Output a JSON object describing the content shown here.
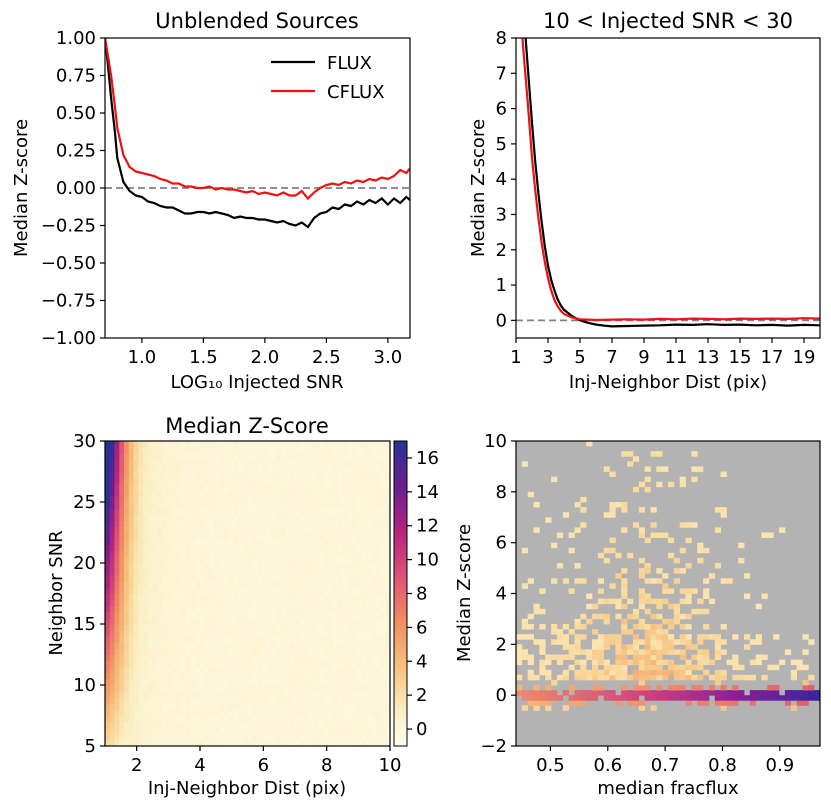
{
  "chart_data": [
    {
      "id": "p1",
      "type": "line",
      "title": "Unblended Sources",
      "xlabel": "LOG₁₀ Injected SNR",
      "ylabel": "Median Z-score",
      "xlim": [
        0.7,
        3.18
      ],
      "ylim": [
        -1.0,
        1.0
      ],
      "xticks": [
        1.0,
        1.5,
        2.0,
        2.5,
        3.0
      ],
      "xtick_labels": [
        "1.0",
        "1.5",
        "2.0",
        "2.5",
        "3.0"
      ],
      "yticks": [
        -1.0,
        -0.75,
        -0.5,
        -0.25,
        0.0,
        0.25,
        0.5,
        0.75,
        1.0
      ],
      "ytick_labels": [
        "−1.00",
        "−0.75",
        "−0.50",
        "−0.25",
        "0.00",
        "0.25",
        "0.50",
        "0.75",
        "1.00"
      ],
      "hline": 0.0,
      "legend_position": "top-right",
      "series": [
        {
          "name": "FLUX",
          "color": "#000000",
          "x": [
            0.7,
            0.72,
            0.75,
            0.78,
            0.8,
            0.85,
            0.9,
            0.95,
            1.0,
            1.05,
            1.1,
            1.15,
            1.2,
            1.25,
            1.3,
            1.35,
            1.4,
            1.45,
            1.5,
            1.55,
            1.6,
            1.65,
            1.7,
            1.75,
            1.8,
            1.85,
            1.9,
            1.95,
            2.0,
            2.05,
            2.1,
            2.15,
            2.2,
            2.25,
            2.3,
            2.35,
            2.4,
            2.45,
            2.5,
            2.55,
            2.6,
            2.65,
            2.7,
            2.75,
            2.8,
            2.85,
            2.9,
            2.95,
            3.0,
            3.05,
            3.1,
            3.15,
            3.18
          ],
          "y": [
            1.0,
            0.85,
            0.6,
            0.38,
            0.2,
            0.04,
            -0.02,
            -0.05,
            -0.06,
            -0.09,
            -0.1,
            -0.12,
            -0.13,
            -0.13,
            -0.15,
            -0.17,
            -0.17,
            -0.16,
            -0.16,
            -0.17,
            -0.16,
            -0.17,
            -0.18,
            -0.2,
            -0.19,
            -0.2,
            -0.2,
            -0.21,
            -0.21,
            -0.22,
            -0.23,
            -0.22,
            -0.24,
            -0.25,
            -0.23,
            -0.26,
            -0.2,
            -0.17,
            -0.16,
            -0.13,
            -0.14,
            -0.11,
            -0.12,
            -0.09,
            -0.11,
            -0.08,
            -0.1,
            -0.07,
            -0.11,
            -0.07,
            -0.1,
            -0.06,
            -0.08
          ]
        },
        {
          "name": "CFLUX",
          "color": "#ee1111",
          "x": [
            0.7,
            0.72,
            0.75,
            0.78,
            0.8,
            0.85,
            0.9,
            0.95,
            1.0,
            1.05,
            1.1,
            1.15,
            1.2,
            1.25,
            1.3,
            1.35,
            1.4,
            1.45,
            1.5,
            1.55,
            1.6,
            1.65,
            1.7,
            1.75,
            1.8,
            1.85,
            1.9,
            1.95,
            2.0,
            2.05,
            2.1,
            2.15,
            2.2,
            2.25,
            2.3,
            2.35,
            2.4,
            2.45,
            2.5,
            2.55,
            2.6,
            2.65,
            2.7,
            2.75,
            2.8,
            2.85,
            2.9,
            2.95,
            3.0,
            3.05,
            3.1,
            3.15,
            3.18
          ],
          "y": [
            1.0,
            0.9,
            0.75,
            0.55,
            0.4,
            0.22,
            0.14,
            0.11,
            0.1,
            0.09,
            0.08,
            0.06,
            0.05,
            0.03,
            0.03,
            0.01,
            0.01,
            0.0,
            0.0,
            0.01,
            -0.01,
            0.0,
            -0.01,
            -0.01,
            -0.02,
            -0.03,
            -0.02,
            -0.04,
            -0.03,
            -0.04,
            -0.05,
            -0.03,
            -0.05,
            -0.05,
            -0.02,
            -0.07,
            -0.03,
            0.0,
            0.02,
            0.03,
            0.02,
            0.04,
            0.03,
            0.05,
            0.04,
            0.06,
            0.05,
            0.07,
            0.06,
            0.08,
            0.12,
            0.1,
            0.13
          ]
        }
      ]
    },
    {
      "id": "p2",
      "type": "line",
      "title": "10 < Injected SNR < 30",
      "xlabel": "Inj-Neighbor Dist (pix)",
      "ylabel": "Median Z-score",
      "xlim": [
        1.0,
        20.0
      ],
      "ylim": [
        -0.5,
        8.0
      ],
      "xticks": [
        1,
        3,
        5,
        7,
        9,
        11,
        13,
        15,
        17,
        19
      ],
      "xtick_labels": [
        "1",
        "3",
        "5",
        "7",
        "9",
        "11",
        "13",
        "15",
        "17",
        "19"
      ],
      "yticks": [
        0,
        1,
        2,
        3,
        4,
        5,
        6,
        7,
        8
      ],
      "ytick_labels": [
        "0",
        "1",
        "2",
        "3",
        "4",
        "5",
        "6",
        "7",
        "8"
      ],
      "hline": 0.0,
      "series": [
        {
          "name": "FLUX",
          "color": "#000000",
          "x": [
            1.6,
            1.8,
            2.0,
            2.2,
            2.4,
            2.6,
            2.8,
            3.0,
            3.2,
            3.4,
            3.6,
            3.8,
            4.0,
            4.5,
            5.0,
            5.5,
            6.0,
            6.5,
            7.0,
            8.0,
            9.0,
            10.0,
            11.0,
            12.0,
            13.0,
            14.0,
            15.0,
            16.0,
            17.0,
            18.0,
            19.0,
            20.0
          ],
          "y": [
            8.0,
            6.8,
            5.6,
            4.5,
            3.6,
            2.8,
            2.1,
            1.55,
            1.15,
            0.85,
            0.6,
            0.42,
            0.3,
            0.12,
            0.0,
            -0.07,
            -0.12,
            -0.15,
            -0.17,
            -0.16,
            -0.15,
            -0.14,
            -0.12,
            -0.13,
            -0.11,
            -0.13,
            -0.12,
            -0.14,
            -0.13,
            -0.15,
            -0.13,
            -0.14
          ]
        },
        {
          "name": "CFLUX",
          "color": "#ee1111",
          "x": [
            1.4,
            1.6,
            1.8,
            2.0,
            2.2,
            2.4,
            2.6,
            2.8,
            3.0,
            3.2,
            3.4,
            3.6,
            3.8,
            4.0,
            4.5,
            5.0,
            5.5,
            6.0,
            7.0,
            8.0,
            9.0,
            10.0,
            11.0,
            12.0,
            13.0,
            14.0,
            15.0,
            16.0,
            17.0,
            18.0,
            19.0,
            20.0
          ],
          "y": [
            8.0,
            6.9,
            5.8,
            4.6,
            3.7,
            2.9,
            2.2,
            1.65,
            1.2,
            0.85,
            0.58,
            0.4,
            0.27,
            0.18,
            0.08,
            0.03,
            0.02,
            0.01,
            0.02,
            0.03,
            0.02,
            0.04,
            0.03,
            0.05,
            0.04,
            0.03,
            0.05,
            0.04,
            0.05,
            0.04,
            0.06,
            0.05
          ]
        }
      ]
    },
    {
      "id": "p3",
      "type": "heatmap",
      "title": "Median Z-Score",
      "xlabel": "Inj-Neighbor Dist (pix)",
      "ylabel": "Neighbor SNR",
      "xlim": [
        1,
        10
      ],
      "ylim": [
        5,
        30
      ],
      "xticks": [
        2,
        4,
        6,
        8,
        10
      ],
      "xtick_labels": [
        "2",
        "4",
        "6",
        "8",
        "10"
      ],
      "yticks": [
        5,
        10,
        15,
        20,
        25,
        30
      ],
      "ytick_labels": [
        "5",
        "10",
        "15",
        "20",
        "25",
        "30"
      ],
      "colorbar_range": [
        -1,
        17
      ],
      "colorbar_ticks": [
        0,
        2,
        4,
        6,
        8,
        10,
        12,
        14,
        16
      ],
      "colorbar_tick_labels": [
        "0",
        "2",
        "4",
        "6",
        "8",
        "10",
        "12",
        "14",
        "16"
      ],
      "colormap": "magma_r"
    },
    {
      "id": "p4",
      "type": "heatmap",
      "xlabel": "median fracflux",
      "ylabel": "Median Z-score",
      "xlim": [
        0.44,
        0.97
      ],
      "ylim": [
        -2,
        10
      ],
      "xticks": [
        0.5,
        0.6,
        0.7,
        0.8,
        0.9
      ],
      "xtick_labels": [
        "0.5",
        "0.6",
        "0.7",
        "0.8",
        "0.9"
      ],
      "yticks": [
        -2,
        0,
        2,
        4,
        6,
        8,
        10
      ],
      "ytick_labels": [
        "−2",
        "0",
        "2",
        "4",
        "6",
        "8",
        "10"
      ],
      "background": "#b3b3b3",
      "colormap": "plasma_r"
    }
  ],
  "legend": {
    "entries": [
      {
        "label": "FLUX",
        "color": "#000000"
      },
      {
        "label": "CFLUX",
        "color": "#ee1111"
      }
    ]
  }
}
